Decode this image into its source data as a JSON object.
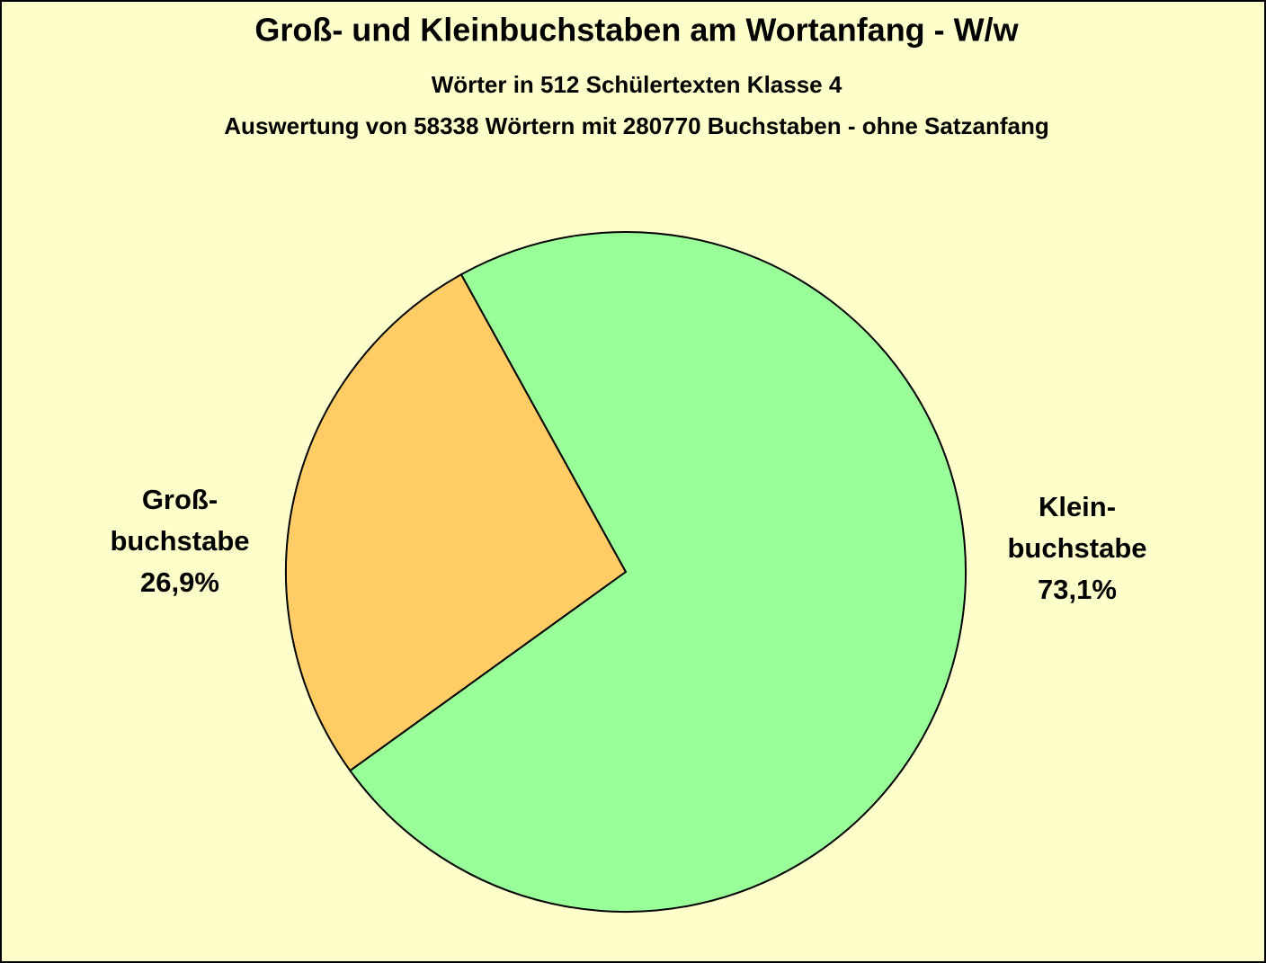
{
  "chart_data": {
    "type": "pie",
    "title": "Groß- und  Kleinbuchstaben am Wortanfang - W/w",
    "subtitle": [
      "Wörter in 512 Schülertexten Klasse 4",
      "Auswertung von 58338 Wörtern mit 280770 Buchstaben - ohne Satzanfang"
    ],
    "categories": [
      [
        "Groß-",
        "buchstabe"
      ],
      [
        "Klein-",
        "buchstabe"
      ]
    ],
    "values": [
      26.9,
      73.1
    ],
    "value_labels": [
      "26,9%",
      "73,1%"
    ],
    "colors": [
      "#ffcc66",
      "#99ff99"
    ]
  }
}
